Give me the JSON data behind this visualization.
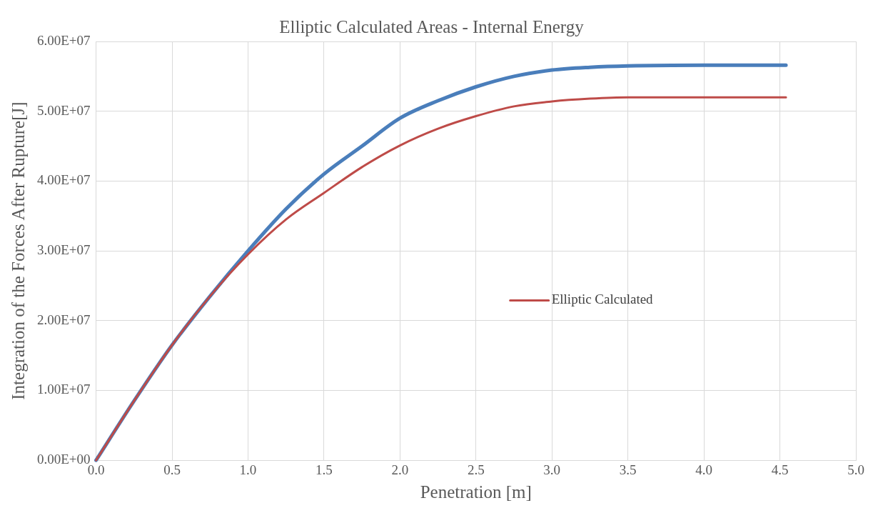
{
  "chart_data": {
    "type": "line",
    "title": "Elliptic Calculated Areas - Internal Energy",
    "xlabel": "Penetration [m]",
    "ylabel": "Integration of the Forces After Rupture[J]",
    "x": [
      0,
      0.25,
      0.5,
      0.75,
      1.0,
      1.25,
      1.5,
      1.75,
      2.0,
      2.25,
      2.5,
      2.75,
      3.0,
      3.25,
      3.5,
      4.0,
      4.54
    ],
    "series": [
      {
        "color": "#4a7ebb",
        "values": [
          0,
          8500000,
          16500000,
          23500000,
          30000000,
          36000000,
          41000000,
          45000000,
          49000000,
          51500000,
          53500000,
          55000000,
          55900000,
          56300000,
          56500000,
          56600000,
          56600000
        ]
      },
      {
        "name": "Elliptic Calculated",
        "color": "#be4b48",
        "values": [
          0,
          8500000,
          16500000,
          23500000,
          29500000,
          34500000,
          38300000,
          42000000,
          45100000,
          47500000,
          49300000,
          50700000,
          51400000,
          51800000,
          52000000,
          52000000,
          52000000
        ]
      }
    ],
    "xlim": [
      0,
      5
    ],
    "xticks": [
      {
        "value": 0,
        "label": "0.0"
      },
      {
        "value": 0.5,
        "label": "0.5"
      },
      {
        "value": 1,
        "label": "1.0"
      },
      {
        "value": 1.5,
        "label": "1.5"
      },
      {
        "value": 2,
        "label": "2.0"
      },
      {
        "value": 2.5,
        "label": "2.5"
      },
      {
        "value": 3,
        "label": "3.0"
      },
      {
        "value": 3.5,
        "label": "3.5"
      },
      {
        "value": 4,
        "label": "4.0"
      },
      {
        "value": 4.5,
        "label": "4.5"
      },
      {
        "value": 5,
        "label": "5.0"
      }
    ],
    "ylim": [
      0,
      60000000
    ],
    "yticks": [
      {
        "value": 0,
        "label": "0.00E+00"
      },
      {
        "value": 10000000,
        "label": "1.00E+07"
      },
      {
        "value": 20000000,
        "label": "2.00E+07"
      },
      {
        "value": 30000000,
        "label": "3.00E+07"
      },
      {
        "value": 40000000,
        "label": "4.00E+07"
      },
      {
        "value": 50000000,
        "label": "5.00E+07"
      },
      {
        "value": 60000000,
        "label": "6.00E+07"
      }
    ],
    "grid": true,
    "legend": "center",
    "marker": "none",
    "line_style": "solid"
  }
}
